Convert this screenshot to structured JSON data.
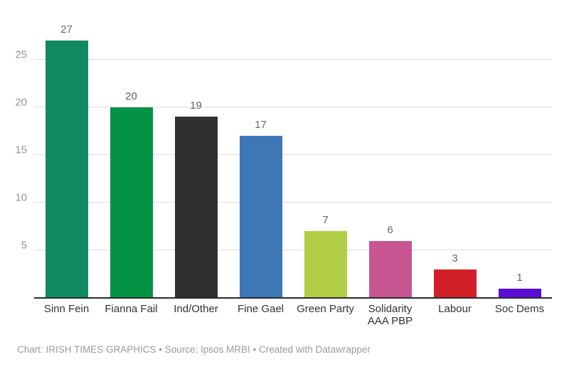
{
  "chart_data": {
    "type": "bar",
    "categories": [
      "Sinn Fein",
      "Fianna Fail",
      "Ind/Other",
      "Fine Gael",
      "Green Party",
      "Solidarity AAA PBP",
      "Labour",
      "Soc Dems"
    ],
    "values": [
      27,
      20,
      19,
      17,
      7,
      6,
      3,
      1
    ],
    "bar_colors": [
      "#108a63",
      "#049244",
      "#2d2f31",
      "#3d77b6",
      "#b1ce44",
      "#c75591",
      "#d22028",
      "#5c0cd6"
    ],
    "title": "",
    "xlabel": "",
    "ylabel": "",
    "ylim": [
      0,
      31
    ],
    "yticks": [
      5,
      10,
      15,
      20,
      25
    ],
    "grid": true,
    "legend": "none",
    "value_labels": true
  },
  "footer": {
    "text": "Chart: IRISH TIMES GRAPHICS • Source: Ipsos MRBI • Created with Datawrapper"
  },
  "colors": {
    "background": "#ffffff",
    "grid": "#dedede",
    "axis": "#2b2b2b",
    "tick_label": "#979797",
    "category_label": "#333333",
    "value_label": "#676767",
    "footer_text": "#9b9b9b"
  }
}
